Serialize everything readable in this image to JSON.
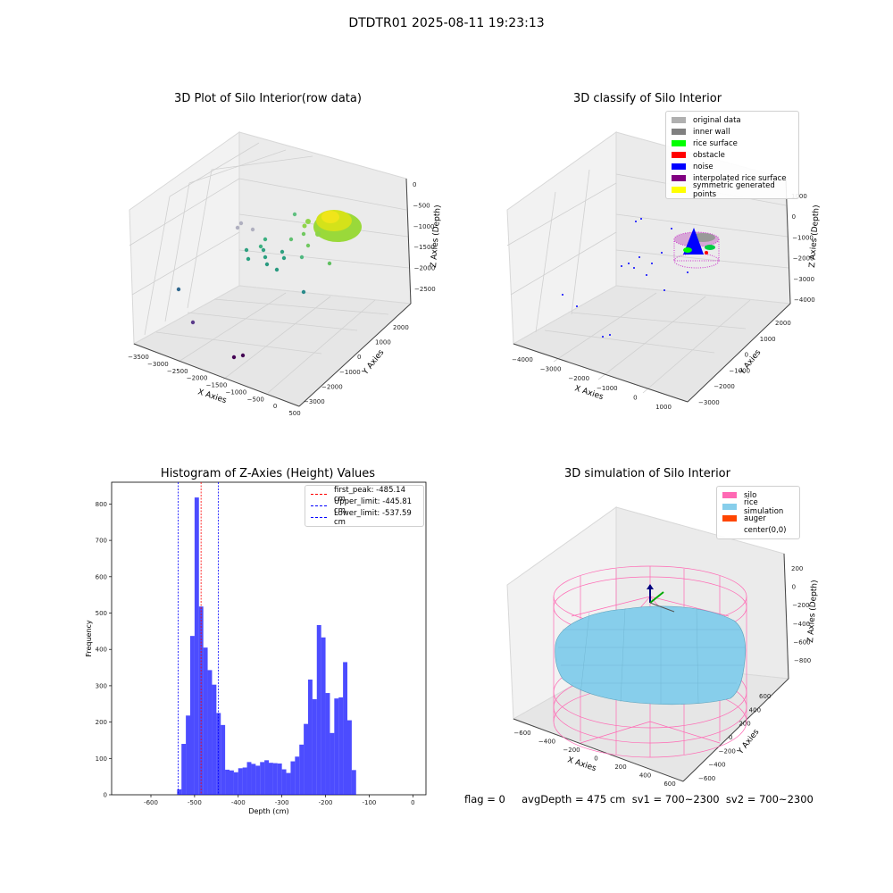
{
  "suptitle": "DTDTR01 2025-08-11 19:23:13",
  "panels": {
    "p1": {
      "title": "3D Plot of Silo Interior(row data)",
      "xlabel": "X Axies",
      "ylabel": "Y Axies",
      "zlabel": "Z Axies (Depth)",
      "xticks": [
        "−3500",
        "−3000",
        "−2500",
        "−2000",
        "−1500",
        "−1000",
        "−500",
        "0",
        "500"
      ],
      "yticks": [
        "−3000",
        "−2000",
        "−1000",
        "0",
        "1000",
        "2000"
      ],
      "zticks": [
        "0",
        "−500",
        "−1000",
        "−1500",
        "−2000",
        "−2500"
      ]
    },
    "p2": {
      "title": "3D classify of Silo Interior",
      "xlabel": "X Axies",
      "ylabel": "Y Axies",
      "zlabel": "Z Axies (Depth)",
      "xticks": [
        "−4000",
        "−3000",
        "−2000",
        "−1000",
        "0",
        "1000"
      ],
      "yticks": [
        "−3000",
        "−2000",
        "−1000",
        "0",
        "1000",
        "2000"
      ],
      "zticks": [
        "1000",
        "0",
        "−1000",
        "−2000",
        "−3000",
        "−4000"
      ],
      "legend": [
        {
          "label": "original data",
          "color": "#b0b0b0"
        },
        {
          "label": "inner wall",
          "color": "#808080"
        },
        {
          "label": "rice surface",
          "color": "#00ff00"
        },
        {
          "label": "obstacle",
          "color": "#ff0000"
        },
        {
          "label": "noise",
          "color": "#0000ff"
        },
        {
          "label": "interpolated rice surface",
          "color": "#800080"
        },
        {
          "label": "symmetric generated points",
          "color": "#ffff00"
        }
      ]
    },
    "p3": {
      "title": "Histogram of Z-Axies (Height) Values",
      "legend": [
        {
          "label": "first_peak: -485.14 cm",
          "color": "#ff0000"
        },
        {
          "label": "Upper_limit: -445.81 cm",
          "color": "#0000ff"
        },
        {
          "label": "Lower_limit: -537.59 cm",
          "color": "#0000ff"
        }
      ]
    },
    "p4": {
      "title": "3D simulation of Silo Interior",
      "xlabel": "X Axies",
      "ylabel": "Y Axies",
      "zlabel": "Z Axies (Depth)",
      "xticks": [
        "−600",
        "−400",
        "−200",
        "0",
        "200",
        "400",
        "600"
      ],
      "yticks": [
        "600",
        "400",
        "200",
        "0",
        "−200",
        "−400",
        "−600"
      ],
      "zticks": [
        "200",
        "0",
        "−200",
        "−400",
        "−600",
        "−800"
      ],
      "legend": [
        {
          "label": "silo",
          "color": "#ff69b4"
        },
        {
          "label": "rice simulation",
          "color": "#87ceeb"
        },
        {
          "label": "auger",
          "color": "#ff4500"
        },
        {
          "label": "center(0,0)",
          "color": "#ffffff"
        }
      ]
    }
  },
  "status": "flag = 0     avgDepth = 475 cm  sv1 = 700~2300  sv2 = 700~2300",
  "chart_data": [
    {
      "type": "scatter",
      "title": "3D Plot of Silo Interior(row data)",
      "xlabel": "X Axies",
      "ylabel": "Y Axies",
      "zlabel": "Z Axies (Depth)",
      "xlim": [
        -3700,
        600
      ],
      "ylim": [
        -3300,
        2400
      ],
      "zlim": [
        -2800,
        100
      ]
    },
    {
      "type": "scatter",
      "title": "3D classify of Silo Interior",
      "xlabel": "X Axies",
      "ylabel": "Y Axies",
      "zlabel": "Z Axies (Depth)",
      "series": [
        {
          "name": "original data"
        },
        {
          "name": "inner wall"
        },
        {
          "name": "rice surface"
        },
        {
          "name": "obstacle"
        },
        {
          "name": "noise"
        },
        {
          "name": "interpolated rice surface"
        },
        {
          "name": "symmetric generated points"
        }
      ]
    },
    {
      "type": "bar",
      "title": "Histogram of Z-Axies (Height) Values",
      "xlabel": "Depth (cm)",
      "ylabel": "Frequency",
      "xlim": [
        -690,
        30
      ],
      "ylim": [
        0,
        860
      ],
      "xticks": [
        -600,
        -500,
        -400,
        -300,
        -200,
        -100,
        0
      ],
      "yticks": [
        0,
        100,
        200,
        300,
        400,
        500,
        600,
        700,
        800
      ],
      "bin_left": -540,
      "bin_width": 10,
      "values": [
        15,
        140,
        218,
        437,
        818,
        518,
        405,
        343,
        303,
        225,
        192,
        69,
        67,
        62,
        73,
        75,
        90,
        85,
        80,
        90,
        95,
        88,
        87,
        86,
        70,
        60,
        92,
        105,
        138,
        195,
        317,
        263,
        467,
        433,
        280,
        170,
        265,
        268,
        365,
        205,
        68
      ],
      "vlines": [
        {
          "name": "first_peak: -485.14 cm",
          "x": -485.14,
          "color": "#ff0000"
        },
        {
          "name": "Upper_limit: -445.81 cm",
          "x": -445.81,
          "color": "#0000ff"
        },
        {
          "name": "Lower_limit: -537.59 cm",
          "x": -537.59,
          "color": "#0000ff"
        }
      ],
      "legend": "top-right"
    },
    {
      "type": "surface",
      "title": "3D simulation of Silo Interior",
      "xlabel": "X Axies",
      "ylabel": "Y Axies",
      "zlabel": "Z Axies (Depth)",
      "series": [
        {
          "name": "silo"
        },
        {
          "name": "rice simulation"
        },
        {
          "name": "auger"
        },
        {
          "name": "center(0,0)"
        }
      ]
    }
  ]
}
